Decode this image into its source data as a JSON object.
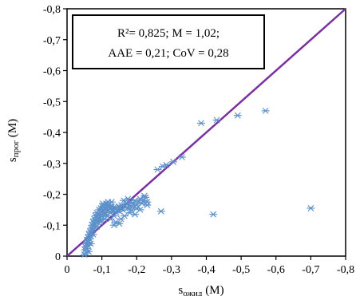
{
  "chart_data": {
    "type": "scatter",
    "xlabel": {
      "main": "s",
      "sub": "ожид",
      "unit": " (M)"
    },
    "ylabel": {
      "main": "s",
      "sub": "прог",
      "unit": " (M)"
    },
    "xlim": [
      0,
      -0.8
    ],
    "ylim": [
      0,
      -0.8
    ],
    "x_ticks": [
      "0",
      "-0,1",
      "-0,2",
      "-0,3",
      "-0,4",
      "-0,5",
      "-0,6",
      "-0,7",
      "-0,8"
    ],
    "y_ticks": [
      "0",
      "-0,1",
      "-0,2",
      "-0,3",
      "-0,4",
      "-0,5",
      "-0,6",
      "-0,7",
      "-0,8"
    ],
    "annotation_lines": [
      "R²= 0,825; M = 1,02;",
      "AAE  = 0,21; CoV = 0,28"
    ],
    "reference_line": {
      "from": [
        0,
        0
      ],
      "to": [
        -0.8,
        -0.8
      ],
      "color": "#7b2fa0"
    },
    "marker": {
      "symbol": "asterisk",
      "color": "#5b8fc9"
    },
    "grid": false,
    "series": [
      {
        "points": [
          [
            -0.05,
            -0.005
          ],
          [
            -0.052,
            -0.02
          ],
          [
            -0.053,
            -0.03
          ],
          [
            -0.055,
            -0.01
          ],
          [
            -0.055,
            -0.04
          ],
          [
            -0.057,
            -0.025
          ],
          [
            -0.058,
            -0.05
          ],
          [
            -0.06,
            -0.035
          ],
          [
            -0.06,
            -0.06
          ],
          [
            -0.062,
            -0.045
          ],
          [
            -0.063,
            -0.07
          ],
          [
            -0.065,
            -0.055
          ],
          [
            -0.066,
            -0.08
          ],
          [
            -0.068,
            -0.065
          ],
          [
            -0.07,
            -0.09
          ],
          [
            -0.07,
            -0.075
          ],
          [
            -0.072,
            -0.1
          ],
          [
            -0.074,
            -0.085
          ],
          [
            -0.075,
            -0.11
          ],
          [
            -0.077,
            -0.095
          ],
          [
            -0.078,
            -0.12
          ],
          [
            -0.08,
            -0.105
          ],
          [
            -0.082,
            -0.13
          ],
          [
            -0.083,
            -0.115
          ],
          [
            -0.085,
            -0.14
          ],
          [
            -0.087,
            -0.125
          ],
          [
            -0.088,
            -0.11
          ],
          [
            -0.09,
            -0.135
          ],
          [
            -0.092,
            -0.15
          ],
          [
            -0.093,
            -0.12
          ],
          [
            -0.095,
            -0.14
          ],
          [
            -0.097,
            -0.155
          ],
          [
            -0.098,
            -0.13
          ],
          [
            -0.1,
            -0.145
          ],
          [
            -0.102,
            -0.16
          ],
          [
            -0.104,
            -0.135
          ],
          [
            -0.105,
            -0.15
          ],
          [
            -0.107,
            -0.165
          ],
          [
            -0.108,
            -0.14
          ],
          [
            -0.11,
            -0.155
          ],
          [
            -0.112,
            -0.17
          ],
          [
            -0.114,
            -0.145
          ],
          [
            -0.116,
            -0.16
          ],
          [
            -0.118,
            -0.15
          ],
          [
            -0.12,
            -0.165
          ],
          [
            -0.122,
            -0.155
          ],
          [
            -0.125,
            -0.14
          ],
          [
            -0.128,
            -0.16
          ],
          [
            -0.13,
            -0.15
          ],
          [
            -0.133,
            -0.145
          ],
          [
            -0.136,
            -0.16
          ],
          [
            -0.139,
            -0.155
          ],
          [
            -0.142,
            -0.14
          ],
          [
            -0.145,
            -0.15
          ],
          [
            -0.148,
            -0.16
          ],
          [
            -0.15,
            -0.145
          ],
          [
            -0.153,
            -0.155
          ],
          [
            -0.156,
            -0.165
          ],
          [
            -0.16,
            -0.15
          ],
          [
            -0.163,
            -0.18
          ],
          [
            -0.166,
            -0.16
          ],
          [
            -0.17,
            -0.17
          ],
          [
            -0.174,
            -0.155
          ],
          [
            -0.178,
            -0.165
          ],
          [
            -0.182,
            -0.175
          ],
          [
            -0.186,
            -0.16
          ],
          [
            -0.19,
            -0.17
          ],
          [
            -0.195,
            -0.18
          ],
          [
            -0.2,
            -0.165
          ],
          [
            -0.205,
            -0.175
          ],
          [
            -0.21,
            -0.185
          ],
          [
            -0.215,
            -0.17
          ],
          [
            -0.22,
            -0.18
          ],
          [
            -0.225,
            -0.19
          ],
          [
            -0.23,
            -0.175
          ],
          [
            -0.108,
            -0.12
          ],
          [
            -0.115,
            -0.13
          ],
          [
            -0.125,
            -0.12
          ],
          [
            -0.14,
            -0.11
          ],
          [
            -0.155,
            -0.12
          ],
          [
            -0.165,
            -0.13
          ],
          [
            -0.18,
            -0.14
          ],
          [
            -0.195,
            -0.135
          ],
          [
            -0.21,
            -0.15
          ],
          [
            -0.095,
            -0.11
          ],
          [
            -0.085,
            -0.095
          ],
          [
            -0.075,
            -0.07
          ],
          [
            -0.068,
            -0.04
          ],
          [
            -0.062,
            -0.015
          ],
          [
            -0.1,
            -0.12
          ],
          [
            -0.118,
            -0.175
          ],
          [
            -0.128,
            -0.175
          ],
          [
            -0.103,
            -0.17
          ],
          [
            -0.11,
            -0.135
          ],
          [
            -0.135,
            -0.13
          ],
          [
            -0.23,
            -0.165
          ],
          [
            -0.222,
            -0.195
          ],
          [
            -0.175,
            -0.185
          ],
          [
            -0.15,
            -0.105
          ],
          [
            -0.135,
            -0.1
          ],
          [
            -0.2,
            -0.155
          ],
          [
            -0.185,
            -0.15
          ],
          [
            -0.26,
            -0.28
          ],
          [
            -0.275,
            -0.29
          ],
          [
            -0.285,
            -0.295
          ],
          [
            -0.305,
            -0.305
          ],
          [
            -0.33,
            -0.32
          ],
          [
            -0.385,
            -0.43
          ],
          [
            -0.43,
            -0.44
          ],
          [
            -0.49,
            -0.455
          ],
          [
            -0.57,
            -0.47
          ],
          [
            -0.27,
            -0.145
          ],
          [
            -0.42,
            -0.135
          ],
          [
            -0.7,
            -0.155
          ]
        ]
      }
    ]
  }
}
